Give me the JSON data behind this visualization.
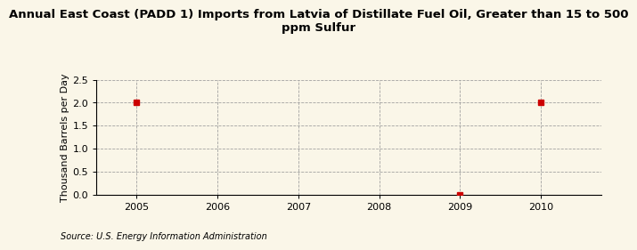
{
  "title": "Annual East Coast (PADD 1) Imports from Latvia of Distillate Fuel Oil, Greater than 15 to 500\nppm Sulfur",
  "ylabel": "Thousand Barrels per Day",
  "source": "Source: U.S. Energy Information Administration",
  "x_data": [
    2005,
    2009,
    2010
  ],
  "y_data": [
    2.0,
    0.0,
    2.0
  ],
  "xlim": [
    2004.5,
    2010.75
  ],
  "ylim": [
    0.0,
    2.5
  ],
  "xticks": [
    2005,
    2006,
    2007,
    2008,
    2009,
    2010
  ],
  "yticks": [
    0.0,
    0.5,
    1.0,
    1.5,
    2.0,
    2.5
  ],
  "background_color": "#faf6e8",
  "plot_bg_color": "#faf6e8",
  "marker_color": "#cc0000",
  "marker_size": 4,
  "grid_color": "#999999",
  "title_fontsize": 9.5,
  "axis_label_fontsize": 8,
  "tick_fontsize": 8,
  "source_fontsize": 7
}
